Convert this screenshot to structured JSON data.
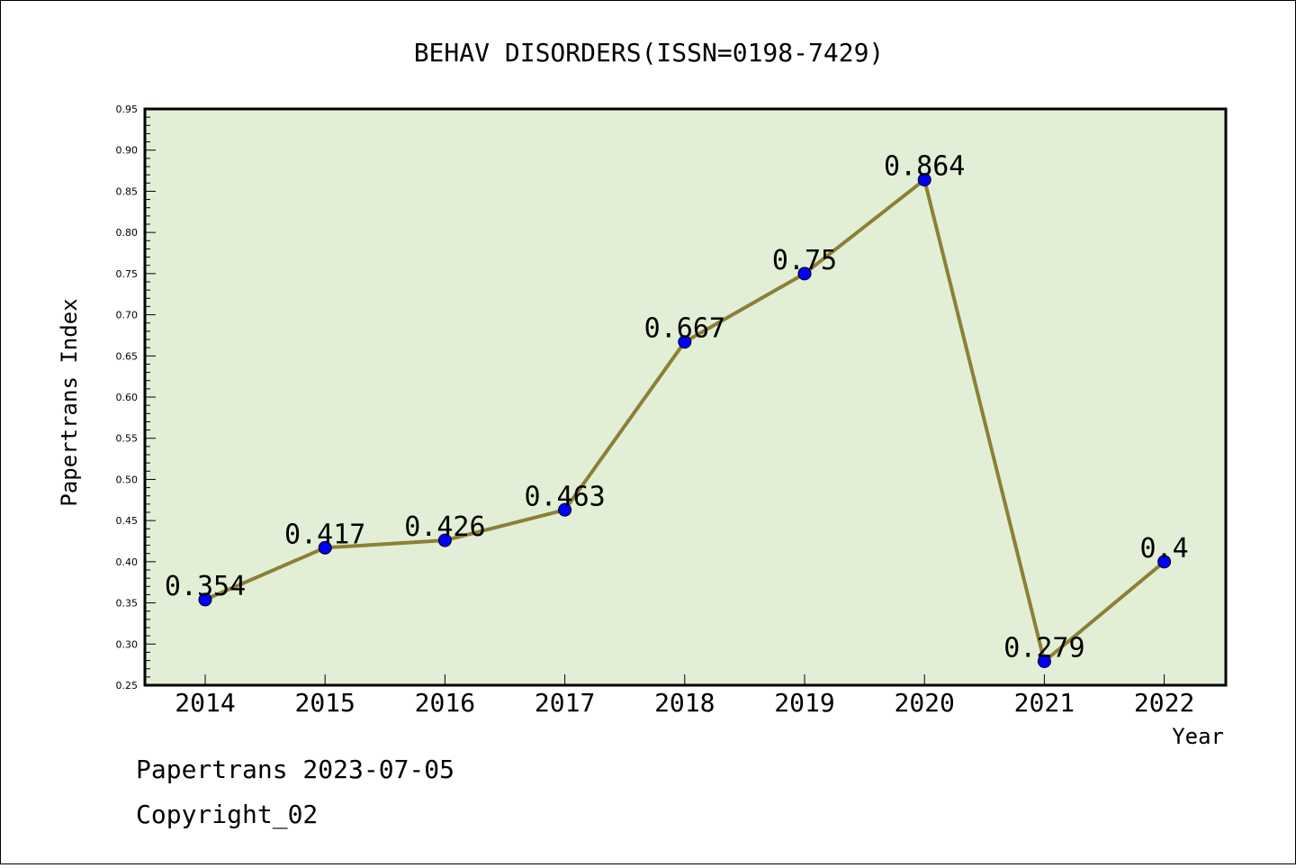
{
  "chart_data": {
    "type": "line",
    "title": "BEHAV DISORDERS(ISSN=0198-7429)",
    "xlabel": "Year",
    "ylabel": "Papertrans Index",
    "categories": [
      "2014",
      "2015",
      "2016",
      "2017",
      "2018",
      "2019",
      "2020",
      "2021",
      "2022"
    ],
    "series": [
      {
        "values": [
          0.354,
          0.417,
          0.426,
          0.463,
          0.667,
          0.75,
          0.864,
          0.279,
          0.4
        ]
      }
    ],
    "data_labels": [
      "0.354",
      "0.417",
      "0.426",
      "0.463",
      "0.667",
      "0.75",
      "0.864",
      "0.279",
      "0.4"
    ],
    "ylim": [
      0.25,
      0.95
    ],
    "yticks": [
      "0.25",
      "0.30",
      "0.35",
      "0.40",
      "0.45",
      "0.50",
      "0.55",
      "0.60",
      "0.65",
      "0.70",
      "0.75",
      "0.80",
      "0.85",
      "0.90",
      "0.95"
    ],
    "grid": false,
    "colors": {
      "plot_background": "#e2efd6",
      "line": "#8b8036",
      "marker": "#0000ff"
    }
  },
  "footer": {
    "line1": "Papertrans 2023-07-05",
    "line2": "Copyright_02"
  }
}
